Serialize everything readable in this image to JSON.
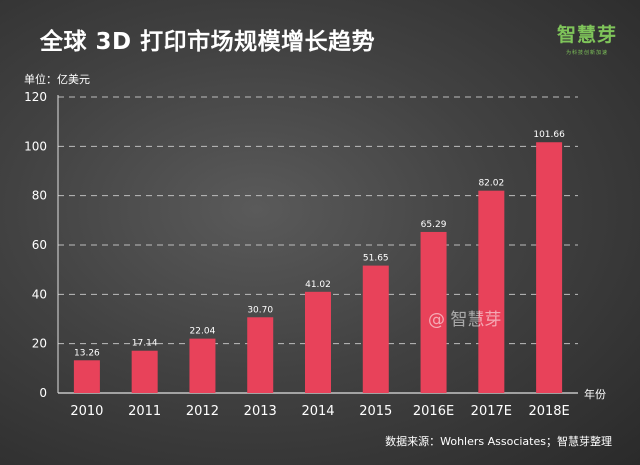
{
  "header": {
    "title": "全球 3D 打印市场规模增长趋势",
    "logo": "智慧芽",
    "logo_sub": "为科技创新加速"
  },
  "watermark": "@ 智慧芽",
  "source": "数据来源：Wohlers Associates；智慧芽整理",
  "colors": {
    "bar": "#e8425a",
    "grid": "#bdbdbd",
    "text": "#ffffff"
  },
  "chart_data": {
    "type": "bar",
    "categories": [
      "2010",
      "2011",
      "2012",
      "2013",
      "2014",
      "2015",
      "2016E",
      "2017E",
      "2018E"
    ],
    "values": [
      13.26,
      17.14,
      22.04,
      30.7,
      41.02,
      51.65,
      65.29,
      82.02,
      101.66
    ],
    "value_labels": [
      "13.26",
      "17.14",
      "22.04",
      "30.70",
      "41.02",
      "51.65",
      "65.29",
      "82.02",
      "101.66"
    ],
    "title": "全球 3D 打印市场规模增长趋势",
    "unit_label": "单位：亿美元",
    "xlabel": "年份",
    "ylabel": "",
    "ylim": [
      0,
      120
    ],
    "yticks": [
      0,
      20,
      40,
      60,
      80,
      100,
      120
    ],
    "grid": true,
    "legend": "none"
  }
}
